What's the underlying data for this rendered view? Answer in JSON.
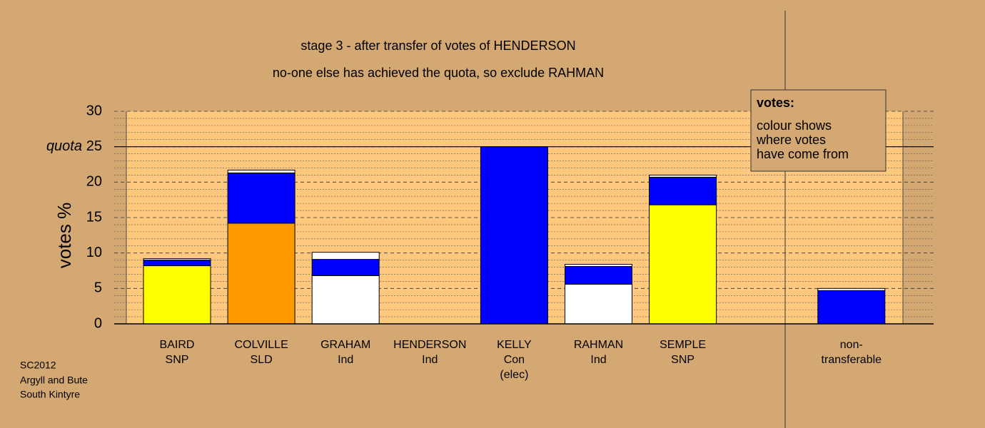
{
  "chart_data": {
    "type": "bar",
    "stacked": true,
    "title": "stage 3 - after transfer of votes of HENDERSON",
    "subtitle": "no-one else has achieved the quota, so exclude RAHMAN",
    "y_label": "votes %",
    "quota_label": "quota",
    "quota": 25,
    "categories": [
      [
        "BAIRD",
        "SNP"
      ],
      [
        "COLVILLE",
        "SLD"
      ],
      [
        "GRAHAM",
        "Ind"
      ],
      [
        "HENDERSON",
        "Ind"
      ],
      [
        "KELLY",
        "Con",
        "(elec)"
      ],
      [
        "RAHMAN",
        "Ind"
      ],
      [
        "SEMPLE",
        "SNP"
      ],
      null,
      [
        "non-",
        "transferable"
      ]
    ],
    "series": [
      {
        "colors": [
          "#ffff00",
          "#ff9900",
          "#ffffff",
          "#ffffff",
          "#0000ff",
          "#ffffff",
          "#ffff00",
          null,
          "#0000ff"
        ],
        "values": [
          8.2,
          14.2,
          6.8,
          0,
          25,
          5.6,
          16.8,
          null,
          0
        ]
      },
      {
        "color": "#0000ff",
        "values": [
          0.8,
          7.1,
          2.3,
          0,
          0,
          2.5,
          3.9,
          null,
          4.7
        ]
      },
      {
        "color": "#ffffff",
        "values": [
          0.2,
          0.4,
          1.0,
          0,
          0,
          0.3,
          0.3,
          null,
          0.3
        ]
      }
    ],
    "ylim": [
      0,
      30
    ],
    "yticks": [
      0,
      5,
      10,
      15,
      20,
      25,
      30
    ],
    "grid": true,
    "legend": {
      "title": "votes:",
      "lines": [
        "colour shows",
        "where votes",
        "have come from"
      ]
    },
    "footnote": [
      "SC2012",
      "Argyll and Bute",
      "South Kintyre"
    ]
  }
}
